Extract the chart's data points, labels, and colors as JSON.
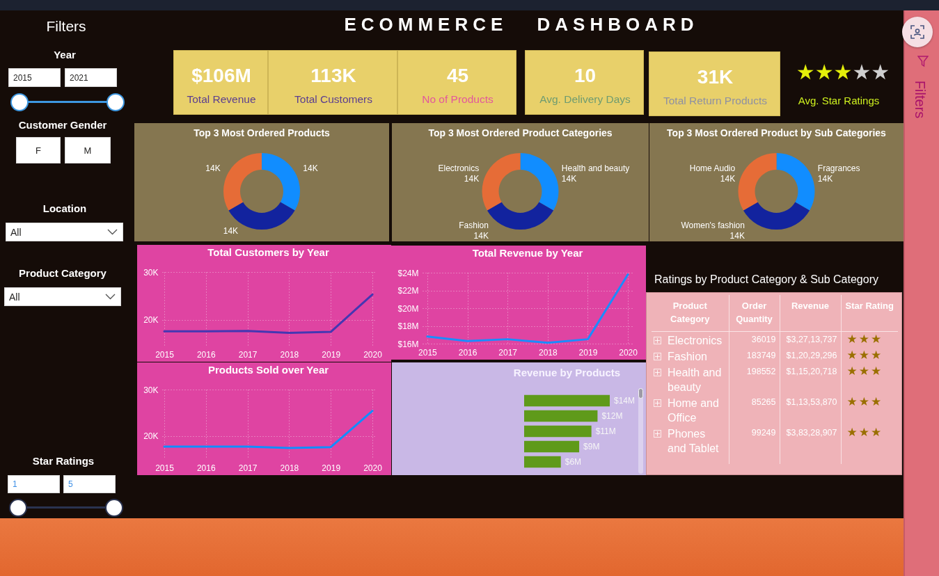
{
  "chart_data": [
    {
      "type": "other",
      "title": "Filters",
      "annotations": [
        "Year",
        "2015",
        "2021",
        "Customer Gender",
        "F",
        "M",
        "Location",
        "All",
        "Product Category",
        "All",
        "Star Ratings",
        "1",
        "5"
      ]
    },
    {
      "type": "other",
      "title": "ECOMMERCE DASHBOARD",
      "annotations": [
        "$106M",
        "Total Revenue",
        "113K",
        "Total Customers",
        "45",
        "No of Products",
        "10",
        "Avg. Delivery Days",
        "31K",
        "Total Return Products",
        "★★★",
        "★★",
        "Avg. Star Ratings"
      ]
    },
    {
      "type": "donut",
      "title": "Top 3 Most Ordered Products",
      "categories": [
        null,
        null,
        null
      ],
      "values": [
        14000,
        14000,
        14000
      ],
      "value_labels": [
        "14K",
        "14K",
        "14K"
      ],
      "colors": [
        "#118dff",
        "#12239e",
        "#e66c37"
      ]
    },
    {
      "type": "donut",
      "title": "Top 3 Most Ordered Product Categories",
      "categories": [
        "Health and beauty",
        "Fashion",
        "Electronics"
      ],
      "values": [
        14000,
        14000,
        14000
      ],
      "value_labels": [
        "14K",
        "14K",
        "14K"
      ],
      "colors": [
        "#118dff",
        "#12239e",
        "#e66c37"
      ]
    },
    {
      "type": "donut",
      "title": "Top 3 Most Ordered Product by Sub Categories",
      "categories": [
        "Fragrances",
        "Women's fashion",
        "Home Audio"
      ],
      "values": [
        14000,
        14000,
        14000
      ],
      "value_labels": [
        "14K",
        "14K",
        "14K"
      ],
      "colors": [
        "#118dff",
        "#12239e",
        "#e66c37"
      ]
    },
    {
      "type": "line",
      "title": "Total Customers by Year",
      "categories": [
        "2015",
        "2016",
        "2017",
        "2018",
        "2019",
        "2020"
      ],
      "series": [
        {
          "color": "#4437b2",
          "values": [
            17600,
            17600,
            17700,
            17300,
            17500,
            25300
          ]
        }
      ],
      "ylim": [
        14600,
        30000
      ],
      "yticks": [
        {
          "value": 20000,
          "label": "20K"
        },
        {
          "value": 30000,
          "label": "30K"
        }
      ],
      "grid": true
    },
    {
      "type": "line",
      "title": "Total Revenue by Year",
      "categories": [
        "2015",
        "2016",
        "2017",
        "2018",
        "2019",
        "2020"
      ],
      "series": [
        {
          "color": "#1a8cff",
          "values": [
            16800000,
            16300000,
            16500000,
            16100000,
            16500000,
            23800000
          ]
        }
      ],
      "ylim": [
        16000000,
        24000000
      ],
      "yticks": [
        {
          "value": 16000000,
          "label": "$16M"
        },
        {
          "value": 18000000,
          "label": "$18M"
        },
        {
          "value": 20000000,
          "label": "$20M"
        },
        {
          "value": 22000000,
          "label": "$22M"
        },
        {
          "value": 24000000,
          "label": "$24M"
        }
      ],
      "grid": true
    },
    {
      "type": "line",
      "title": "Products Sold over Year",
      "categories": [
        "2015",
        "2016",
        "2017",
        "2018",
        "2019",
        "2020"
      ],
      "series": [
        {
          "color": "#118dff",
          "values": [
            17700,
            17700,
            17700,
            17400,
            17600,
            25400
          ]
        }
      ],
      "ylim": [
        15000,
        30000
      ],
      "yticks": [
        {
          "value": 20000,
          "label": "20K"
        },
        {
          "value": 30000,
          "label": "30K"
        }
      ],
      "grid": true
    },
    {
      "type": "bar",
      "title": "Revenue by Products",
      "orientation": "horizontal",
      "categories": [
        null,
        null,
        null,
        null,
        null
      ],
      "values": [
        14000000,
        12000000,
        11000000,
        9000000,
        6000000
      ],
      "value_labels": [
        "$14M",
        "$12M",
        "$11M",
        "$9M",
        "$6M"
      ],
      "color": "#5f9a1a"
    },
    {
      "type": "other",
      "title": "Ratings by Product Category & Sub Category",
      "categories": [
        "Product Category",
        "Order Quantity",
        "Revenue",
        "Star Rating"
      ],
      "y_categories": [
        "Electronics",
        "Fashion",
        "Health and beauty",
        "Home and Office",
        "Phones and Tablet"
      ],
      "cell_labels": [
        [
          "36019",
          "$3,27,13,737",
          "★★★"
        ],
        [
          "183749",
          "$1,20,29,296",
          "★★★"
        ],
        [
          "198552",
          "$1,15,20,718",
          "★★★"
        ],
        [
          "85265",
          "$1,13,53,870",
          "★★★"
        ],
        [
          "99249",
          "$3,83,28,907",
          "★★★"
        ]
      ]
    },
    {
      "type": "other",
      "title": "Filters"
    }
  ]
}
